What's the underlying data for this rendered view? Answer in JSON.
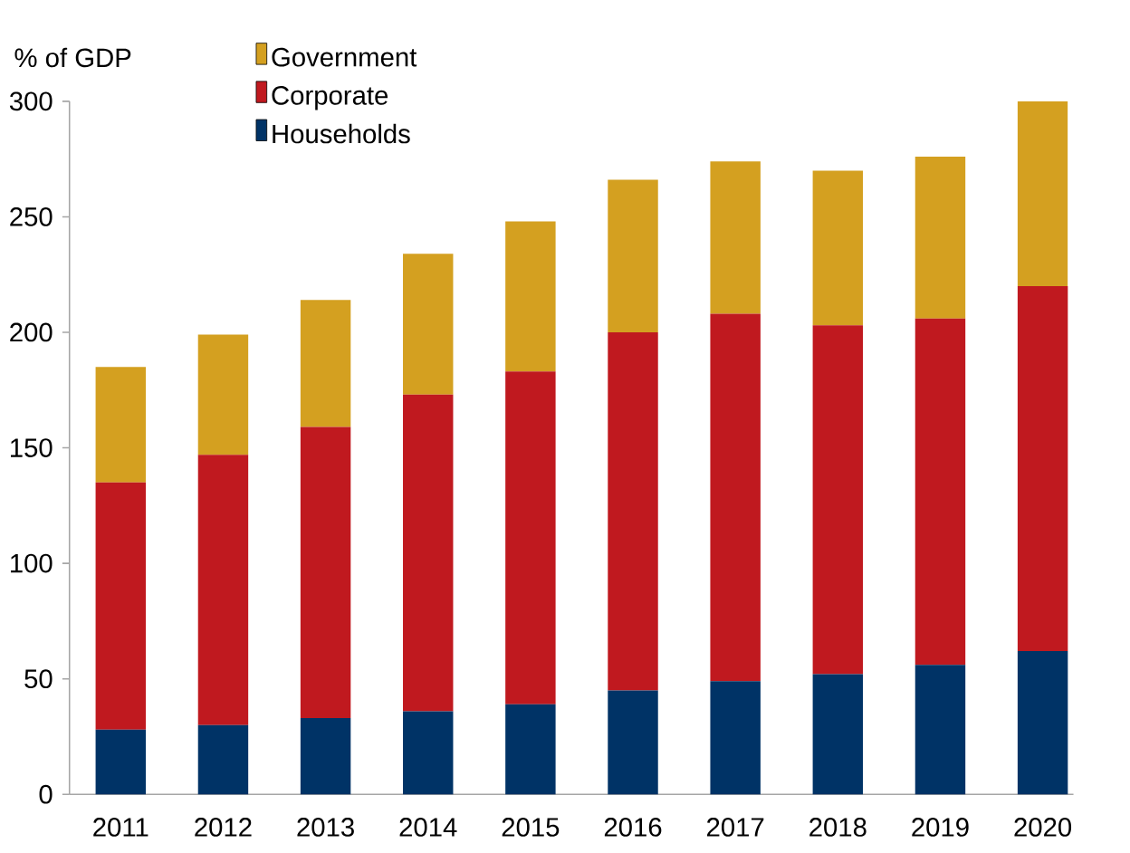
{
  "chart_data": {
    "type": "bar",
    "stacked": true,
    "ylabel": "% of GDP",
    "categories": [
      "2011",
      "2012",
      "2013",
      "2014",
      "2015",
      "2016",
      "2017",
      "2018",
      "2019",
      "2020"
    ],
    "series": [
      {
        "name": "Households",
        "color": "#003366",
        "values": [
          28,
          30,
          33,
          36,
          39,
          45,
          49,
          52,
          56,
          62
        ]
      },
      {
        "name": "Corporate",
        "color": "#c0191f",
        "values": [
          107,
          117,
          126,
          137,
          144,
          155,
          159,
          151,
          150,
          158
        ]
      },
      {
        "name": "Government",
        "color": "#d4a020",
        "values": [
          50,
          52,
          55,
          61,
          65,
          66,
          66,
          67,
          70,
          80
        ]
      }
    ],
    "ylim": [
      0,
      300
    ],
    "yticks": [
      0,
      50,
      100,
      150,
      200,
      250,
      300
    ],
    "legend": "top left",
    "grid": false
  }
}
